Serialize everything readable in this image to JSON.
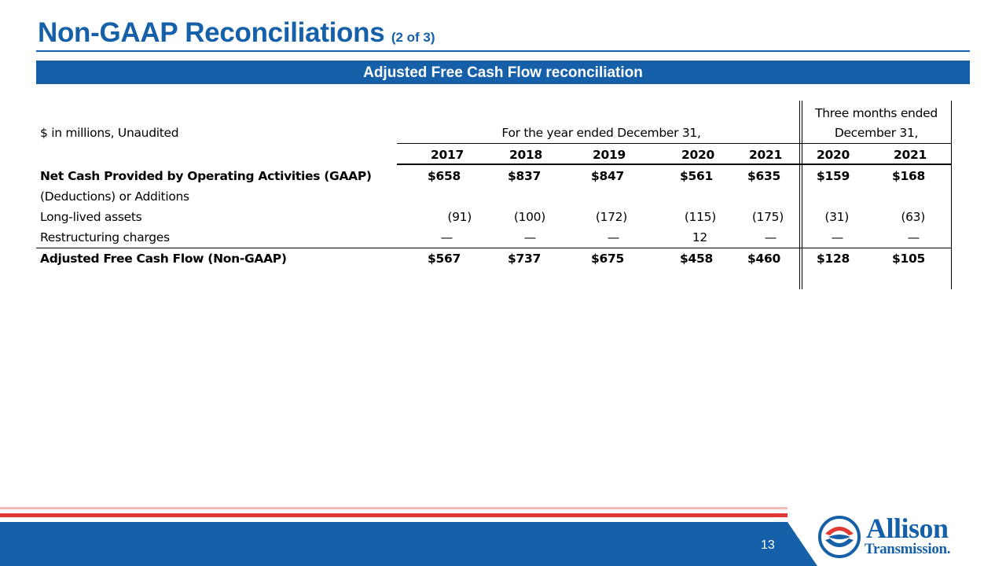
{
  "header": {
    "title": "Non-GAAP Reconciliations",
    "subtitle": "(2 of 3)",
    "banner": "Adjusted Free Cash Flow reconciliation",
    "brand_color": "#1560a8"
  },
  "table": {
    "unit_label": "$ in millions, Unaudited",
    "annual_header": "For the year ended December 31,",
    "quarter_header_line1": "Three months ended",
    "quarter_header_line2": "December 31,",
    "years": [
      "2017",
      "2018",
      "2019",
      "2020",
      "2021",
      "2020",
      "2021"
    ],
    "rows": [
      {
        "label": "Net Cash Provided by Operating Activities (GAAP)",
        "values": [
          "$658",
          "$837",
          "$847",
          "$561",
          "$635",
          "$159",
          "$168"
        ]
      },
      {
        "label": "(Deductions) or Additions",
        "values": [
          "",
          "",
          "",
          "",
          "",
          "",
          ""
        ]
      },
      {
        "label": "Long-lived assets",
        "values": [
          "(91)",
          "(100)",
          "(172)",
          "(115)",
          "(175)",
          "(31)",
          "(63)"
        ]
      },
      {
        "label": "Restructuring charges",
        "values": [
          "—",
          "—",
          "—",
          "12",
          "—",
          "—",
          "—"
        ]
      },
      {
        "label": "Adjusted Free Cash Flow (Non-GAAP)",
        "values": [
          "$567",
          "$737",
          "$675",
          "$458",
          "$460",
          "$128",
          "$105"
        ]
      }
    ]
  },
  "footer": {
    "page_number": "13",
    "logo_line1": "Allison",
    "logo_line2": "Transmission.",
    "accent_red": "#e03a34"
  }
}
